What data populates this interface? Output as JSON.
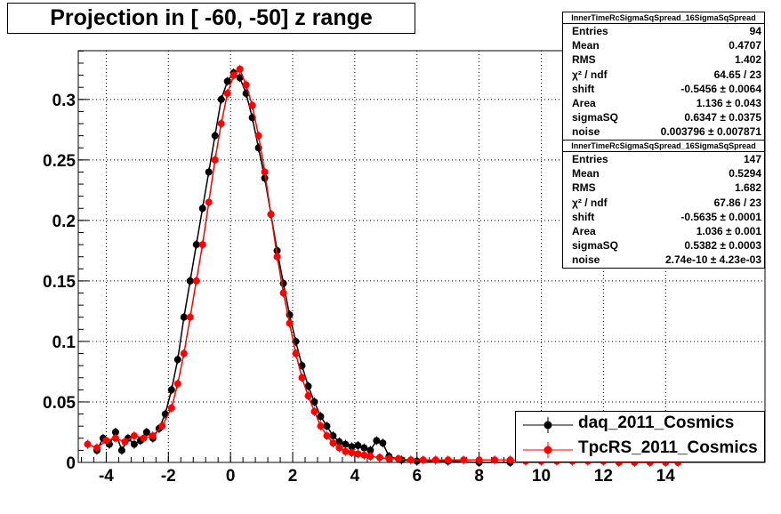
{
  "title": "Projection in [ -60, -50] z range",
  "colors": {
    "daq": "#000000",
    "tpcrs": "#ff0000",
    "frame": "#000000",
    "grid": "#000000"
  },
  "stats_boxes": [
    {
      "header": "InnerTimeRcSigmaSqSpread_16SigmaSqSpread",
      "rows": [
        {
          "key": "Entries",
          "value": "94"
        },
        {
          "key": "Mean",
          "value": "0.4707"
        },
        {
          "key": "RMS",
          "value": "1.402"
        },
        {
          "key": "χ² / ndf",
          "value": "64.65 / 23"
        },
        {
          "key": "shift",
          "value": "-0.5456 ± 0.0064"
        },
        {
          "key": "Area",
          "value": "1.136 ± 0.043"
        },
        {
          "key": "sigmaSQ",
          "value": "0.6347 ± 0.0375"
        },
        {
          "key": "noise",
          "value": "0.003796 ± 0.007871"
        }
      ]
    },
    {
      "header": "InnerTimeRcSigmaSqSpread_16SigmaSqSpread",
      "rows": [
        {
          "key": "Entries",
          "value": "147"
        },
        {
          "key": "Mean",
          "value": "0.5294"
        },
        {
          "key": "RMS",
          "value": "1.682"
        },
        {
          "key": "χ² / ndf",
          "value": "67.86 / 23"
        },
        {
          "key": "shift",
          "value": "-0.5635 ± 0.0001"
        },
        {
          "key": "Area",
          "value": "1.036 ± 0.001"
        },
        {
          "key": "sigmaSQ",
          "value": "0.5382 ± 0.0003"
        },
        {
          "key": "noise",
          "value": "2.74e-10 ± 4.23e-03"
        }
      ]
    }
  ],
  "legend": [
    {
      "label": "daq_2011_Cosmics",
      "color": "#000000"
    },
    {
      "label": "TpcRS_2011_Cosmics",
      "color": "#ff0000"
    }
  ],
  "chart_data": {
    "type": "scatter",
    "title": "Projection in [ -60, -50] z range",
    "xlabel": "",
    "ylabel": "",
    "xlim": [
      -4.9,
      17.2
    ],
    "ylim": [
      0,
      0.3403
    ],
    "x_ticks": [
      -4,
      -2,
      0,
      2,
      4,
      6,
      8,
      10,
      12,
      14
    ],
    "y_ticks": [
      0,
      0.05,
      0.1,
      0.15,
      0.2,
      0.25,
      0.3
    ],
    "y_tick_labels": [
      "0",
      "0.05",
      "0.1",
      "0.15",
      "0.2",
      "0.25",
      "0.3"
    ],
    "grid": true,
    "legend_position": "bottom-right",
    "series": [
      {
        "name": "daq_2011_Cosmics",
        "color": "#000000",
        "x": [
          -4.3,
          -4.1,
          -3.9,
          -3.7,
          -3.5,
          -3.3,
          -3.1,
          -2.9,
          -2.7,
          -2.5,
          -2.3,
          -2.1,
          -1.9,
          -1.7,
          -1.5,
          -1.3,
          -1.1,
          -0.9,
          -0.7,
          -0.5,
          -0.3,
          -0.1,
          0.1,
          0.3,
          0.5,
          0.7,
          0.9,
          1.1,
          1.3,
          1.5,
          1.7,
          1.9,
          2.1,
          2.3,
          2.5,
          2.7,
          2.9,
          3.1,
          3.3,
          3.5,
          3.7,
          3.9,
          4.1,
          4.3,
          4.5,
          4.7,
          4.9,
          5.1,
          5.5,
          6.0,
          7.0,
          8.0,
          9.0
        ],
        "y": [
          0.01,
          0.02,
          0.015,
          0.025,
          0.01,
          0.02,
          0.015,
          0.018,
          0.025,
          0.02,
          0.028,
          0.04,
          0.06,
          0.085,
          0.12,
          0.15,
          0.18,
          0.21,
          0.24,
          0.27,
          0.3,
          0.315,
          0.322,
          0.318,
          0.305,
          0.285,
          0.26,
          0.235,
          0.205,
          0.175,
          0.148,
          0.122,
          0.1,
          0.08,
          0.063,
          0.05,
          0.038,
          0.03,
          0.022,
          0.017,
          0.015,
          0.013,
          0.014,
          0.012,
          0.01,
          0.018,
          0.016,
          0.005,
          0.002,
          0.001,
          0.001,
          0.0,
          0.0
        ]
      },
      {
        "name": "TpcRS_2011_Cosmics",
        "color": "#ff0000",
        "x": [
          -4.6,
          -4.3,
          -4.0,
          -3.7,
          -3.4,
          -3.1,
          -2.8,
          -2.5,
          -2.2,
          -1.9,
          -1.7,
          -1.5,
          -1.3,
          -1.1,
          -0.9,
          -0.7,
          -0.5,
          -0.3,
          -0.1,
          0.1,
          0.3,
          0.5,
          0.7,
          0.9,
          1.1,
          1.3,
          1.5,
          1.7,
          1.9,
          2.1,
          2.3,
          2.5,
          2.7,
          2.9,
          3.1,
          3.3,
          3.5,
          3.7,
          3.9,
          4.1,
          4.3,
          4.5,
          4.8,
          5.1,
          5.4,
          5.8,
          6.2,
          6.6,
          7.0,
          7.5,
          8.0,
          8.5,
          9.0,
          9.5,
          10.0,
          10.5,
          11.0,
          11.5,
          12.0,
          12.5,
          13.0,
          13.5,
          14.0,
          14.4
        ],
        "y": [
          0.015,
          0.012,
          0.018,
          0.02,
          0.017,
          0.022,
          0.02,
          0.022,
          0.03,
          0.045,
          0.065,
          0.09,
          0.12,
          0.15,
          0.18,
          0.215,
          0.25,
          0.28,
          0.305,
          0.32,
          0.325,
          0.312,
          0.295,
          0.27,
          0.24,
          0.205,
          0.17,
          0.14,
          0.115,
          0.09,
          0.07,
          0.055,
          0.042,
          0.03,
          0.022,
          0.016,
          0.012,
          0.009,
          0.008,
          0.007,
          0.006,
          0.005,
          0.004,
          0.003,
          0.003,
          0.002,
          0.002,
          0.002,
          0.002,
          0.002,
          0.002,
          0.002,
          0.002,
          0.001,
          0.001,
          0.001,
          0.001,
          0.001,
          0.001,
          0.0,
          0.0,
          0.0,
          0.0,
          0.0
        ]
      }
    ]
  }
}
